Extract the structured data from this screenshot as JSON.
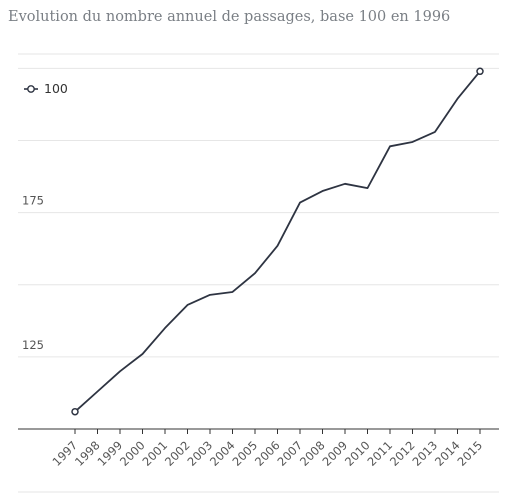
{
  "chart_data": {
    "type": "line",
    "title": "Evolution du nombre annuel de passages, base 100 en 1996",
    "xlabel": "",
    "ylabel": "",
    "ylim": [
      100,
      230
    ],
    "y_ticks": [
      125,
      175
    ],
    "grid": true,
    "legend_position": "top-left",
    "categories": [
      "1997",
      "1998",
      "1999",
      "2000",
      "2001",
      "2002",
      "2003",
      "2004",
      "2005",
      "2006",
      "2007",
      "2008",
      "2009",
      "2010",
      "2011",
      "2012",
      "2013",
      "2014",
      "2015"
    ],
    "series": [
      {
        "name": "100",
        "color": "#2e3442",
        "values": [
          106,
          113,
          120,
          126,
          135,
          143,
          146.5,
          147.5,
          154,
          163.5,
          178.5,
          182.5,
          185,
          183.5,
          198,
          199.5,
          203,
          214.5,
          224
        ]
      }
    ]
  }
}
